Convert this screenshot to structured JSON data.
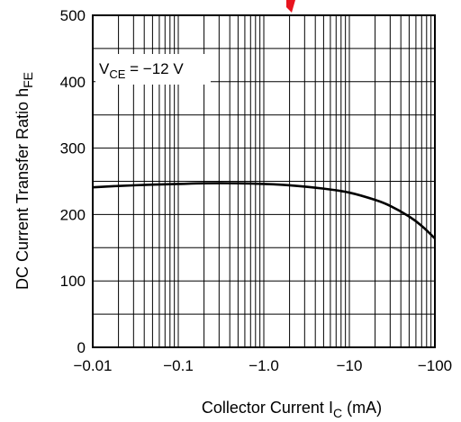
{
  "chart_data": {
    "type": "line",
    "title": "",
    "xlabel": "Collector Current",
    "xlabel_symbol": "I",
    "xlabel_subscript": "C",
    "xlabel_unit": "(mA)",
    "ylabel": "DC Current Transfer Ratio",
    "ylabel_symbol": "h",
    "ylabel_subscript": "FE",
    "x_scale": "log",
    "xlim": [
      -0.01,
      -100
    ],
    "ylim": [
      0,
      500
    ],
    "x_ticks": [
      -0.01,
      -0.1,
      -1.0,
      -10,
      -100
    ],
    "x_tick_labels": [
      "−0.01",
      "−0.1",
      "−1.0",
      "−10",
      "−100"
    ],
    "y_ticks": [
      0,
      100,
      200,
      300,
      400,
      500
    ],
    "y_tick_labels": [
      "0",
      "100",
      "200",
      "300",
      "400",
      "500"
    ],
    "grid": true,
    "annotation": {
      "symbol": "V",
      "subscript": "CE",
      "text": " = −12 V"
    },
    "series": [
      {
        "x": [
          -0.01,
          -0.02,
          -0.05,
          -0.1,
          -0.2,
          -0.5,
          -1.0,
          -2.0,
          -5.0,
          -10,
          -20,
          -30,
          -50,
          -70,
          -100
        ],
        "y": [
          241,
          243,
          245,
          246,
          247,
          247,
          246,
          244,
          239,
          233,
          222,
          213,
          197,
          183,
          164
        ]
      }
    ]
  }
}
